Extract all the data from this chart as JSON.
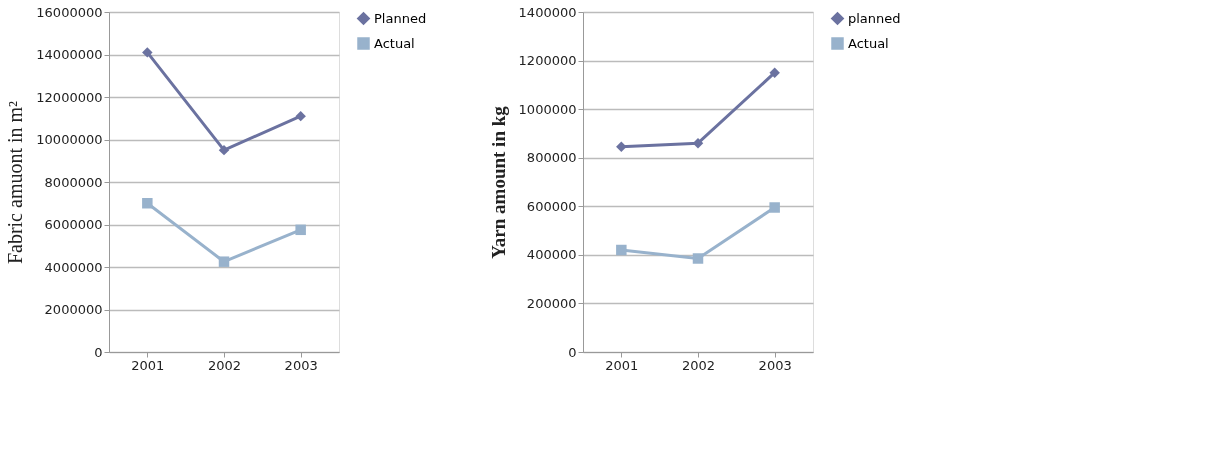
{
  "chart_data": [
    {
      "type": "line",
      "ylabel": "Fabric amuont in m²",
      "categories": [
        "2001",
        "2002",
        "2003"
      ],
      "series": [
        {
          "name": "Planned",
          "color": "#6b72a0",
          "marker": "diamond",
          "values": [
            14100000,
            9500000,
            11100000
          ]
        },
        {
          "name": "Actual",
          "color": "#98b2cc",
          "marker": "square",
          "values": [
            7000000,
            4250000,
            5750000
          ]
        }
      ],
      "ylim": [
        0,
        16000000
      ],
      "yticks": [
        0,
        2000000,
        4000000,
        6000000,
        8000000,
        10000000,
        12000000,
        14000000,
        16000000
      ],
      "grid": "y",
      "legend": "right",
      "line_style": "solid"
    },
    {
      "type": "line",
      "ylabel": "Yarn amount in kg",
      "categories": [
        "2001",
        "2002",
        "2003"
      ],
      "series": [
        {
          "name": "planned",
          "color": "#6b72a0",
          "marker": "diamond",
          "values": [
            845000,
            860000,
            1150000
          ]
        },
        {
          "name": "Actual",
          "color": "#98b2cc",
          "marker": "square",
          "values": [
            420000,
            385000,
            595000
          ]
        }
      ],
      "ylim": [
        0,
        1400000
      ],
      "yticks": [
        0,
        200000,
        400000,
        600000,
        800000,
        1000000,
        1200000,
        1400000
      ],
      "grid": "y",
      "legend": "right",
      "line_style": "solid"
    }
  ]
}
